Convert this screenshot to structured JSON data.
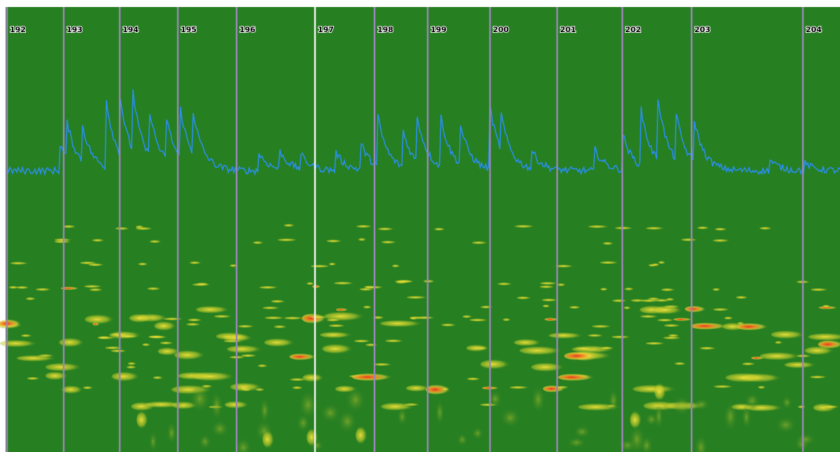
{
  "timeline": {
    "markers": [
      "192",
      "193",
      "194",
      "195",
      "196",
      "197",
      "198",
      "199",
      "200",
      "201",
      "202",
      "203",
      "204"
    ]
  }
}
